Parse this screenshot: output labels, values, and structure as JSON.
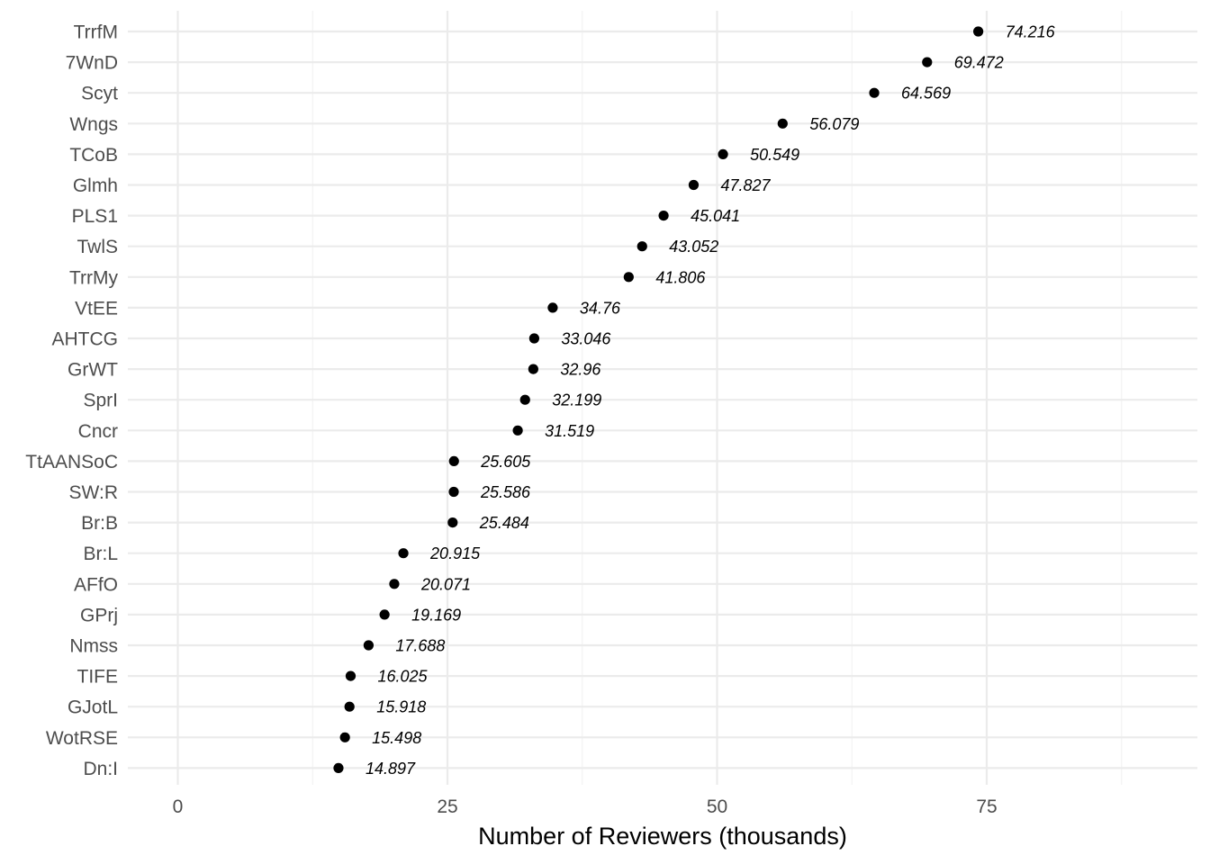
{
  "chart_data": {
    "type": "scatter",
    "title": "",
    "xlabel": "Number of Reviewers (thousands)",
    "ylabel": "",
    "xlim": [
      -4,
      90
    ],
    "x_ticks": [
      0,
      25,
      50,
      75
    ],
    "grid": true,
    "point_color": "#000000",
    "categories": [
      "TrrfM",
      "7WnD",
      "Scyt",
      "Wngs",
      "TCoB",
      "Glmh",
      "PLS1",
      "TwlS",
      "TrrMy",
      "VtEE",
      "AHTCG",
      "GrWT",
      "SprI",
      "Cncr",
      "TtAANSoC",
      "SW:R",
      "Br:B",
      "Br:L",
      "AFfO",
      "GPrj",
      "Nmss",
      "TIFE",
      "GJotL",
      "WotRSE",
      "Dn:I"
    ],
    "values": [
      74.216,
      69.472,
      64.569,
      56.079,
      50.549,
      47.827,
      45.041,
      43.052,
      41.806,
      34.76,
      33.046,
      32.96,
      32.199,
      31.519,
      25.605,
      25.586,
      25.484,
      20.915,
      20.071,
      19.169,
      17.688,
      16.025,
      15.918,
      15.498,
      14.897
    ],
    "labels": [
      "74.216",
      "69.472",
      "64.569",
      "56.079",
      "50.549",
      "47.827",
      "45.041",
      "43.052",
      "41.806",
      "34.76",
      "33.046",
      "32.96",
      "32.199",
      "31.519",
      "25.605",
      "25.586",
      "25.484",
      "20.915",
      "20.071",
      "19.169",
      "17.688",
      "16.025",
      "15.918",
      "15.498",
      "14.897"
    ]
  }
}
